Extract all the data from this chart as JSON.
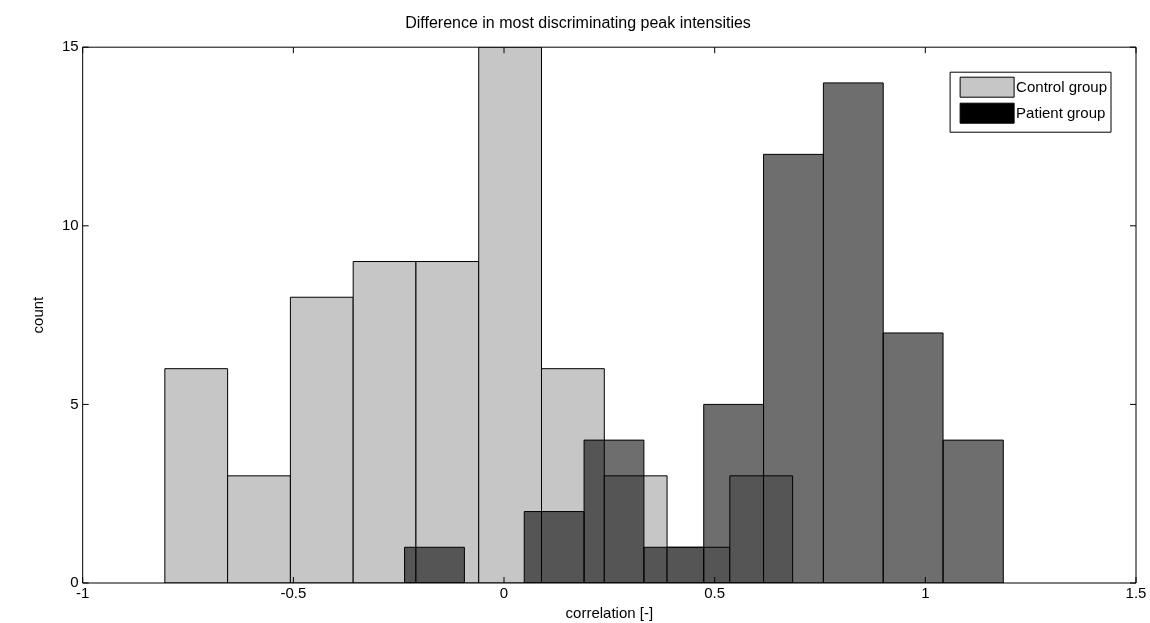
{
  "chart_data": {
    "type": "histogram",
    "title": "Difference in most discriminating peak intensities",
    "xlabel": "correlation [-]",
    "ylabel": "count",
    "xlim": [
      -1,
      1.5
    ],
    "xticks": [
      -1,
      -0.5,
      0,
      0.5,
      1,
      1.5
    ],
    "ylim": [
      0,
      15
    ],
    "yticks": [
      0,
      5,
      10,
      15
    ],
    "legend": "top right",
    "bins": [
      -0.805,
      -0.656,
      -0.507,
      -0.358,
      -0.209,
      -0.06,
      0.089,
      0.238,
      0.387,
      0.536,
      0.685
    ],
    "series": [
      {
        "name": "Control group",
        "color": "#c6c6c6",
        "values": [
          6,
          3,
          8,
          9,
          9,
          15,
          6,
          3,
          1,
          3
        ]
      },
      {
        "name": "Patient group",
        "color": "#000000",
        "bins": [
          -0.236,
          -0.094,
          0.048,
          0.19,
          0.332,
          0.474,
          0.616,
          0.758,
          0.9,
          1.042,
          1.185
        ],
        "values": [
          1,
          0,
          2,
          4,
          1,
          5,
          12,
          14,
          7,
          4
        ]
      }
    ]
  }
}
